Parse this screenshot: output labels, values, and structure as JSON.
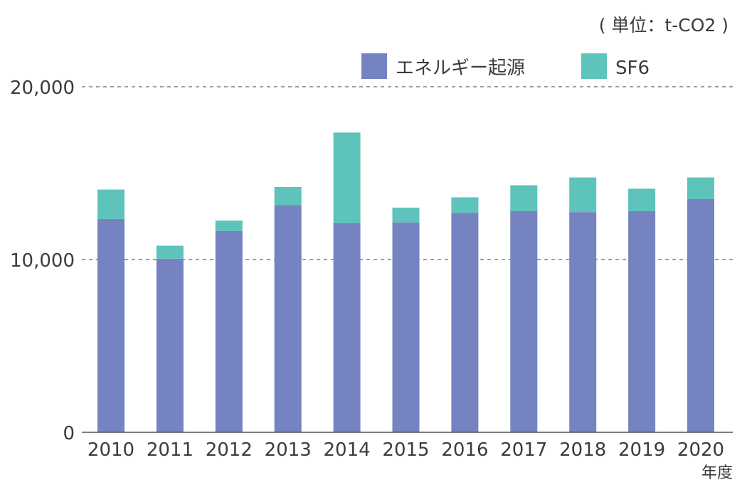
{
  "colors": {
    "energy": "#7583c0",
    "sf6": "#5ec3bb",
    "axis": "#555555",
    "grid": "#666666",
    "text": "#3c3c3c"
  },
  "chart_data": {
    "type": "bar",
    "stacked": true,
    "unit_label": "( 単位：t-CO2 )",
    "xlabel": "年度",
    "ylabel": "",
    "ylim": [
      0,
      20000
    ],
    "yticks": [
      0,
      10000,
      20000
    ],
    "ytick_labels": [
      "0",
      "10,000",
      "20,000"
    ],
    "grid": "horizontal dashed at 10,000 and 20,000",
    "legend_position": "top-right",
    "categories": [
      "2010",
      "2011",
      "2012",
      "2013",
      "2014",
      "2015",
      "2016",
      "2017",
      "2018",
      "2019",
      "2020"
    ],
    "series": [
      {
        "name": "エネルギー起源",
        "color": "#7583c0",
        "values": [
          12350,
          10050,
          11650,
          13150,
          12100,
          12150,
          12700,
          12800,
          12750,
          12800,
          13500
        ]
      },
      {
        "name": "SF6",
        "color": "#5ec3bb",
        "values": [
          1700,
          750,
          600,
          1050,
          5250,
          850,
          900,
          1500,
          2000,
          1300,
          1250
        ]
      }
    ]
  }
}
